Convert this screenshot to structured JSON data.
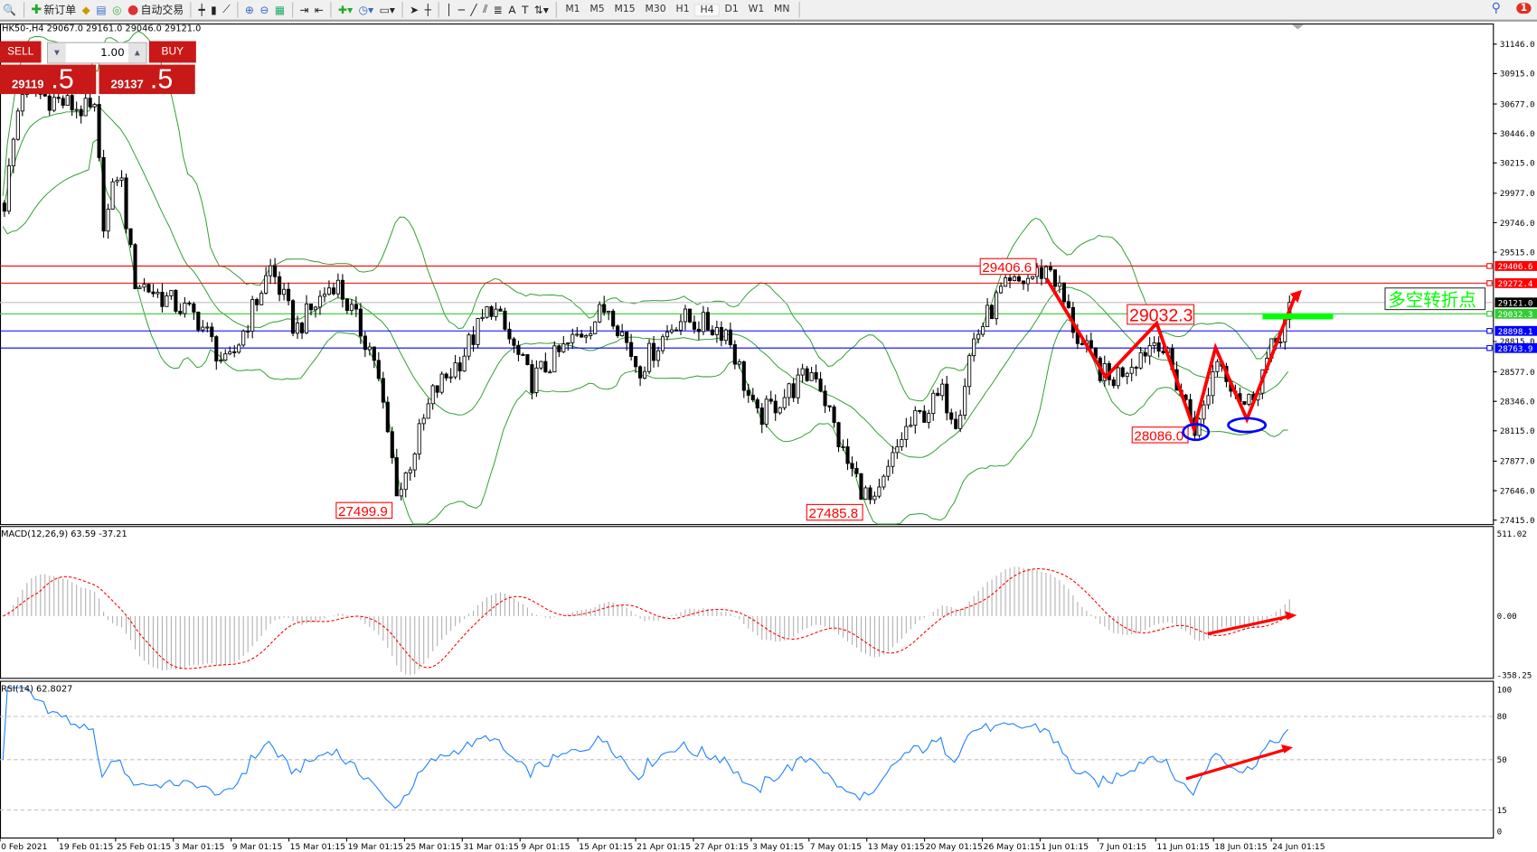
{
  "toolbar": {
    "new_order": "新订单",
    "auto_trading": "自动交易",
    "timeframes": [
      "M1",
      "M5",
      "M15",
      "M30",
      "H1",
      "H4",
      "D1",
      "W1",
      "MN"
    ],
    "active_timeframe": "H4",
    "notifications": "1"
  },
  "chart": {
    "header": "HK50-,H4  29067.0 29161.0 29046.0 29121.0",
    "symbol": "HK50-",
    "timeframe": "H4"
  },
  "trade_panel": {
    "sell": "SELL",
    "buy": "BUY",
    "lot": "1.00",
    "bid_main": "29119",
    "bid_frac": "5",
    "ask_main": "29137",
    "ask_frac": "5"
  },
  "price_axis": {
    "ticks": [
      "31146.0",
      "30915.0",
      "30677.0",
      "30446.0",
      "30215.0",
      "29977.0",
      "29746.0",
      "29515.0",
      "28815.0",
      "28577.0",
      "28346.0",
      "28115.0",
      "27877.0",
      "27646.0",
      "27415.0"
    ],
    "range": [
      27415,
      31146
    ]
  },
  "levels": [
    {
      "value": 29406.6,
      "label": "29406.6",
      "color": "#ff0000"
    },
    {
      "value": 29272.4,
      "label": "29272.4",
      "color": "#ff0000"
    },
    {
      "value": 29121.0,
      "label": "29121.0",
      "color": "#000000",
      "line": "#c0c0c0"
    },
    {
      "value": 29032.3,
      "label": "29032.3",
      "color": "#32cd32"
    },
    {
      "value": 28898.1,
      "label": "28898.1",
      "color": "#0000ff"
    },
    {
      "value": 28763.9,
      "label": "28763.9",
      "color": "#0000ff"
    }
  ],
  "annotations": {
    "labels": [
      "29406.6",
      "29032.3",
      "28086.0",
      "27499.9",
      "27485.8"
    ],
    "note": "多空转折点",
    "note_color": "#00ff00",
    "arrow_color": "#ff0000",
    "ellipse_color": "#0000ff"
  },
  "macd": {
    "label": "MACD(12,26,9) 63.59 -37.21",
    "ticks": [
      "511.02",
      "0.00",
      "-358.25"
    ],
    "range": [
      -358.25,
      511.02
    ]
  },
  "rsi": {
    "label": "RSI(14) 62.8027",
    "ticks": [
      "100",
      "80",
      "50",
      "15",
      "0"
    ]
  },
  "time_axis": [
    "0 Feb 2021",
    "19 Feb 01:15",
    "25 Feb 01:15",
    "3 Mar 01:15",
    "9 Mar 01:15",
    "15 Mar 01:15",
    "19 Mar 01:15",
    "25 Mar 01:15",
    "31 Mar 01:15",
    "9 Apr 01:15",
    "15 Apr 01:15",
    "21 Apr 01:15",
    "27 Apr 01:15",
    "3 May 01:15",
    "7 May 01:15",
    "13 May 01:15",
    "20 May 01:15",
    "26 May 01:15",
    "1 Jun 01:15",
    "7 Jun 01:15",
    "11 Jun 01:15",
    "18 Jun 01:15",
    "24 Jun 01:15"
  ],
  "price_path": [
    29900,
    30800,
    30600,
    29700,
    30200,
    29300,
    29000,
    28600,
    29400,
    28900,
    29300,
    28700,
    27600,
    28400,
    28700,
    29100,
    28500,
    28800,
    29100,
    28600,
    29000,
    28900,
    28200,
    28400,
    28600,
    27900,
    27500,
    28100,
    28400,
    28200,
    28800,
    29200,
    29400,
    28800,
    28500,
    28850,
    28100,
    28700,
    28300,
    29121
  ],
  "colors": {
    "bands": "#2e9e2e",
    "macd_signal": "#ff0000",
    "macd_hist": "#b0b0b0",
    "rsi": "#1e7fff"
  }
}
